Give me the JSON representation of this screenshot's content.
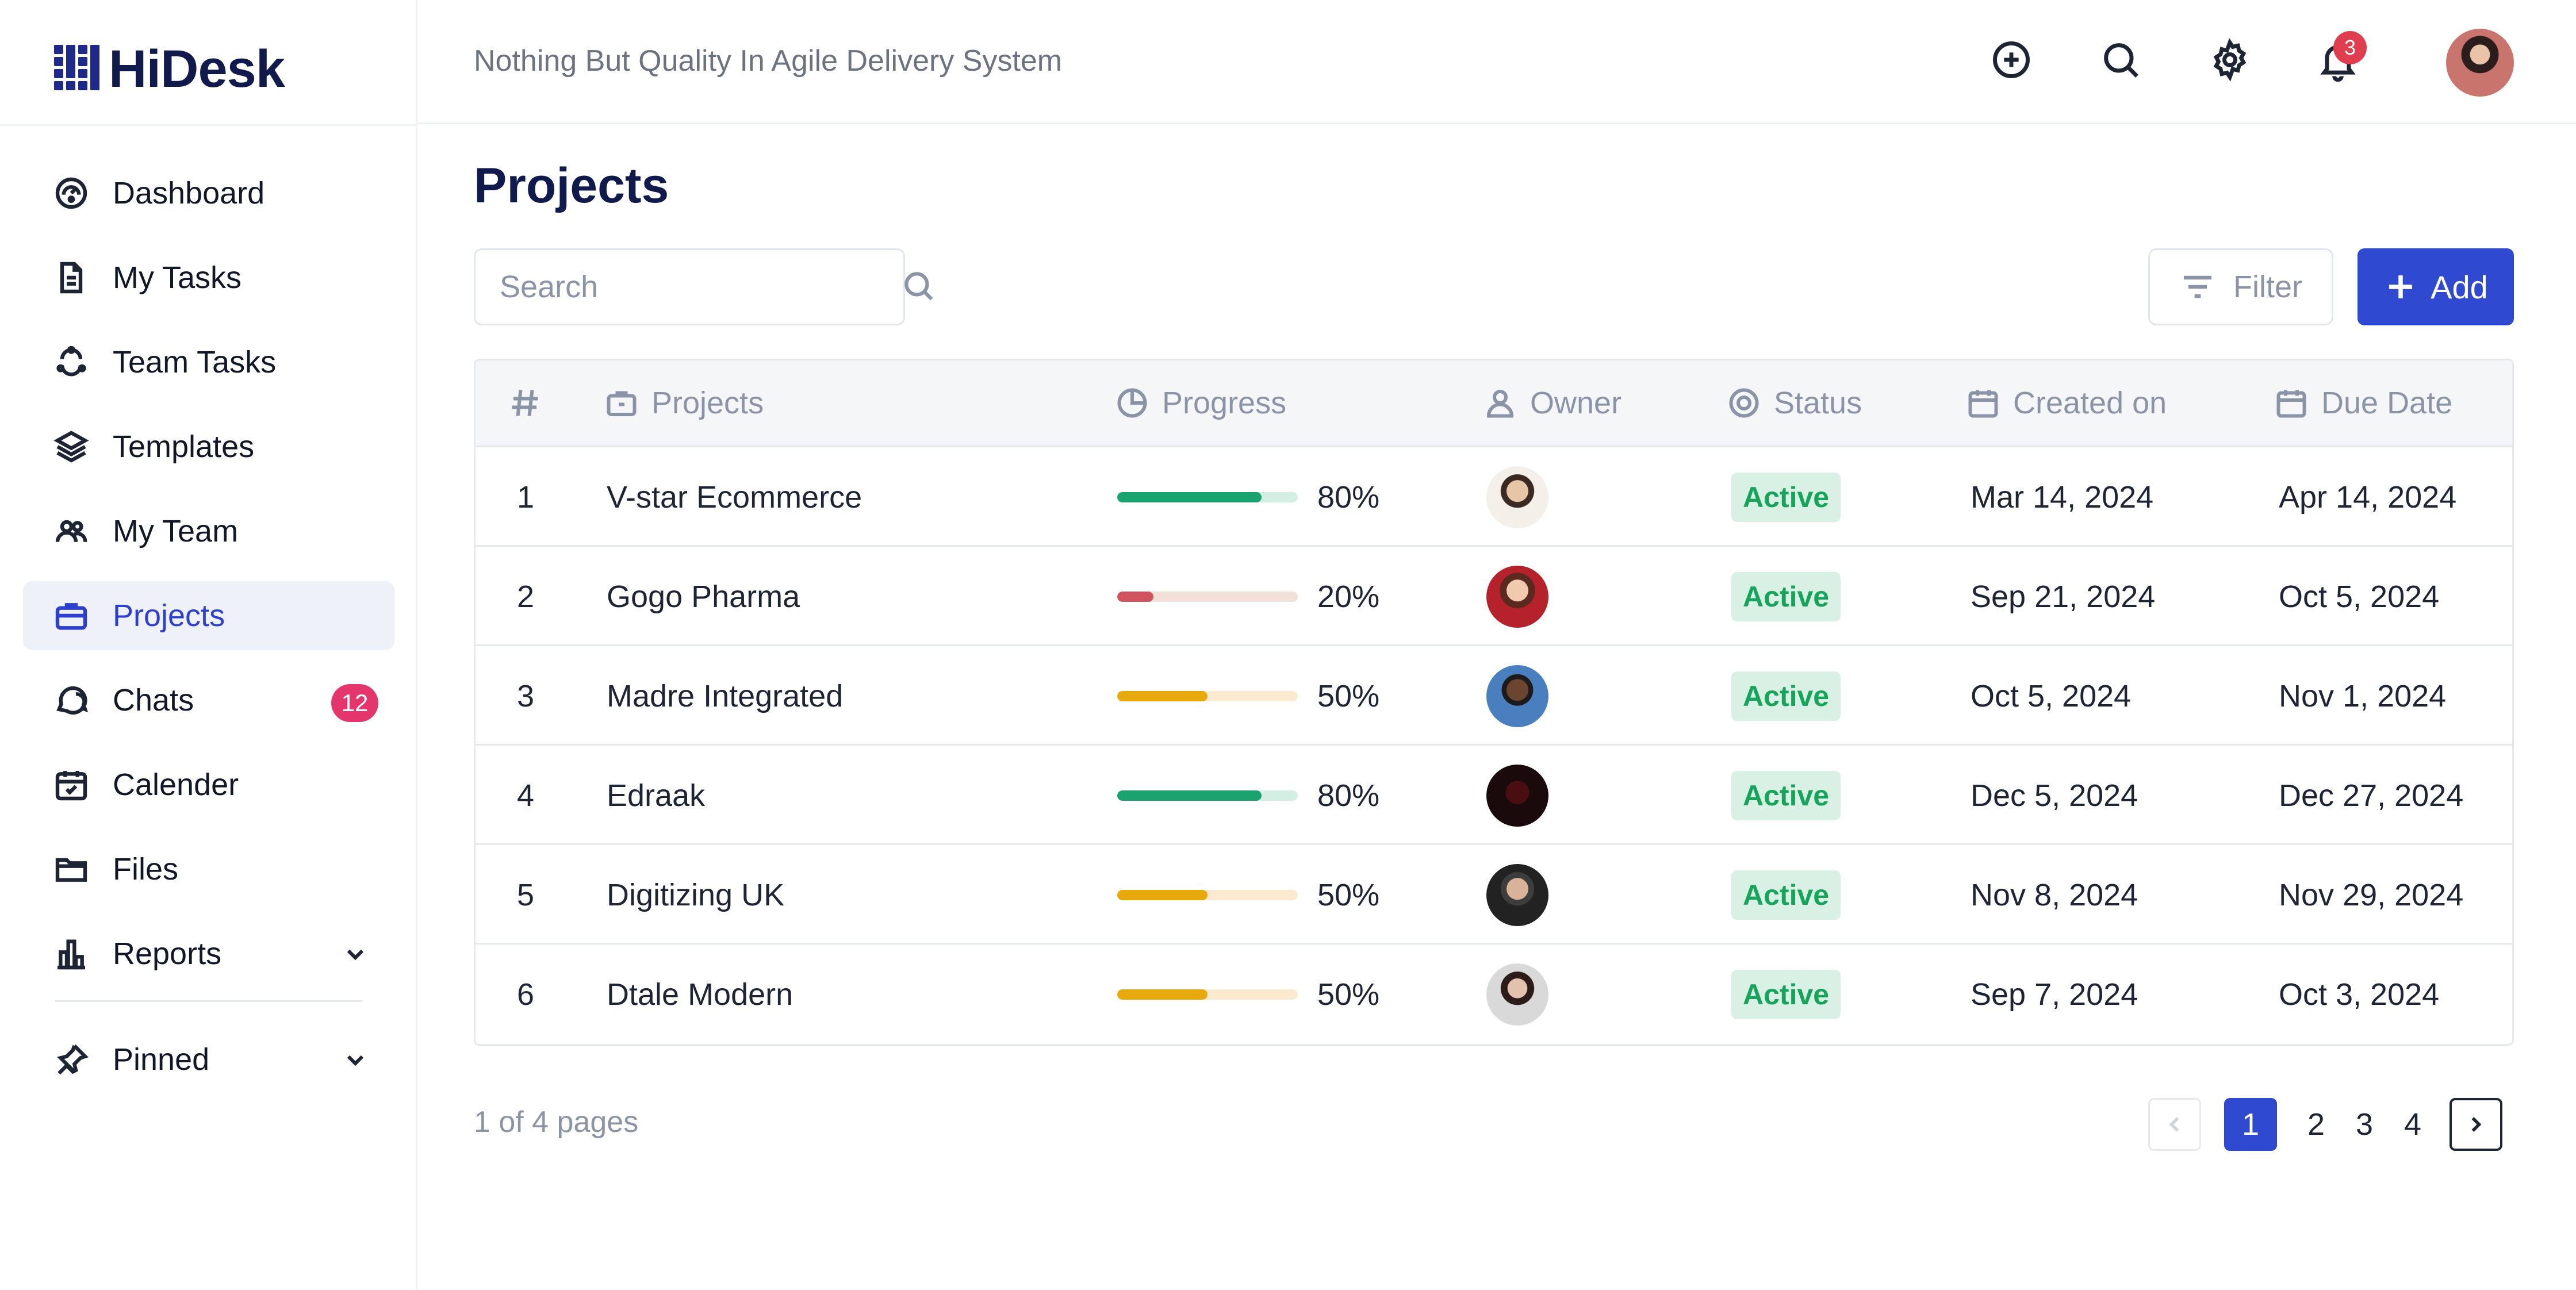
{
  "brand": {
    "name": "HiDesk"
  },
  "header": {
    "tagline": "Nothing But Quality In Agile Delivery System",
    "notification_count": "3",
    "icons": [
      "plus-circle-icon",
      "search-icon",
      "gear-icon",
      "bell-icon"
    ]
  },
  "sidebar": {
    "items": [
      {
        "label": "Dashboard",
        "icon": "dashboard-icon"
      },
      {
        "label": "My Tasks",
        "icon": "document-icon"
      },
      {
        "label": "Team Tasks",
        "icon": "team-tasks-icon"
      },
      {
        "label": "Templates",
        "icon": "layers-icon"
      },
      {
        "label": "My Team",
        "icon": "users-icon"
      },
      {
        "label": "Projects",
        "icon": "briefcase-icon",
        "active": true
      },
      {
        "label": "Chats",
        "icon": "chat-icon",
        "badge": "12"
      },
      {
        "label": "Calender",
        "icon": "calendar-icon"
      },
      {
        "label": "Files",
        "icon": "folder-icon"
      },
      {
        "label": "Reports",
        "icon": "bar-chart-icon",
        "expandable": true
      }
    ],
    "pinned": {
      "label": "Pinned",
      "icon": "pin-icon"
    }
  },
  "main": {
    "title": "Projects",
    "search": {
      "placeholder": "Search",
      "value": ""
    },
    "filter_label": "Filter",
    "add_label": "Add",
    "table": {
      "columns": [
        "#",
        "Projects",
        "Progress",
        "Owner",
        "Status",
        "Created on",
        "Due Date"
      ],
      "rows": [
        {
          "num": "1",
          "project": "V-star Ecommerce",
          "progress": 0.8,
          "progress_label": "80%",
          "status": "Active",
          "created": "Mar 14, 2024",
          "due": "Apr 14, 2024"
        },
        {
          "num": "2",
          "project": "Gogo Pharma",
          "progress": 0.2,
          "progress_label": "20%",
          "status": "Active",
          "created": "Sep 21, 2024",
          "due": "Oct 5, 2024"
        },
        {
          "num": "3",
          "project": "Madre Integrated",
          "progress": 0.5,
          "progress_label": "50%",
          "status": "Active",
          "created": "Oct 5, 2024",
          "due": "Nov 1, 2024"
        },
        {
          "num": "4",
          "project": "Edraak",
          "progress": 0.8,
          "progress_label": "80%",
          "status": "Active",
          "created": "Dec 5, 2024",
          "due": "Dec 27, 2024"
        },
        {
          "num": "5",
          "project": "Digitizing UK",
          "progress": 0.5,
          "progress_label": "50%",
          "status": "Active",
          "created": "Nov 8, 2024",
          "due": "Nov 29, 2024"
        },
        {
          "num": "6",
          "project": "Dtale Modern",
          "progress": 0.5,
          "progress_label": "50%",
          "status": "Active",
          "created": "Sep 7, 2024",
          "due": "Oct 3, 2024"
        }
      ]
    },
    "pagination": {
      "info": "1 of 4 pages",
      "pages": [
        "1",
        "2",
        "3",
        "4"
      ],
      "current": "1"
    }
  },
  "colors": {
    "accent": "#2f49d1",
    "progress_high": "#1aa36f",
    "progress_high_track": "#d3efe3",
    "progress_low": "#d0545f",
    "progress_low_track": "#f2e1d8",
    "progress_mid": "#e8a90c",
    "progress_mid_track": "#fbead0",
    "status_bg": "#d8f1e4",
    "status_text": "#16a35a",
    "badge_pink": "#e4356d"
  }
}
